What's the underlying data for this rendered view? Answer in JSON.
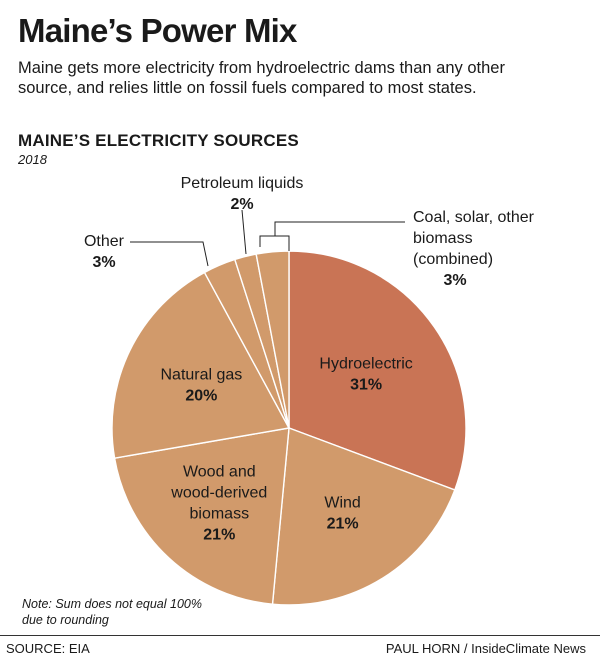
{
  "header": {
    "title": "Maine’s Power Mix",
    "subtitle": "Maine gets more electricity from hydroelectric dams than any other source, and relies little on fossil fuels compared to most states."
  },
  "chart_data": {
    "type": "pie",
    "title": "MAINE’S ELECTRICITY SOURCES",
    "subtitle": "2018",
    "slices": [
      {
        "label": "Hydroelectric",
        "label_lines": [
          "Hydroelectric"
        ],
        "value": 31,
        "value_label": "31%",
        "color": "#c97455"
      },
      {
        "label": "Wind",
        "label_lines": [
          "Wind"
        ],
        "value": 21,
        "value_label": "21%",
        "color": "#d19a6b"
      },
      {
        "label": "Wood and wood-derived biomass",
        "label_lines": [
          "Wood and",
          "wood-derived",
          "biomass"
        ],
        "value": 21,
        "value_label": "21%",
        "color": "#d19a6b"
      },
      {
        "label": "Natural gas",
        "label_lines": [
          "Natural gas"
        ],
        "value": 20,
        "value_label": "20%",
        "color": "#d19a6b"
      },
      {
        "label": "Other",
        "label_lines": [
          "Other"
        ],
        "value": 3,
        "value_label": "3%",
        "color": "#d19a6b"
      },
      {
        "label": "Petroleum liquids",
        "label_lines": [
          "Petroleum liquids"
        ],
        "value": 2,
        "value_label": "2%",
        "color": "#d19a6b"
      },
      {
        "label": "Coal, solar, other biomass (combined)",
        "label_lines": [
          "Coal, solar, other",
          "biomass",
          "(combined)"
        ],
        "value": 3,
        "value_label": "3%",
        "color": "#d19a6b"
      }
    ],
    "note": "Note: Sum does not equal 100% due to rounding"
  },
  "footer": {
    "source": "SOURCE: EIA",
    "credit": "PAUL HORN / InsideClimate News"
  }
}
